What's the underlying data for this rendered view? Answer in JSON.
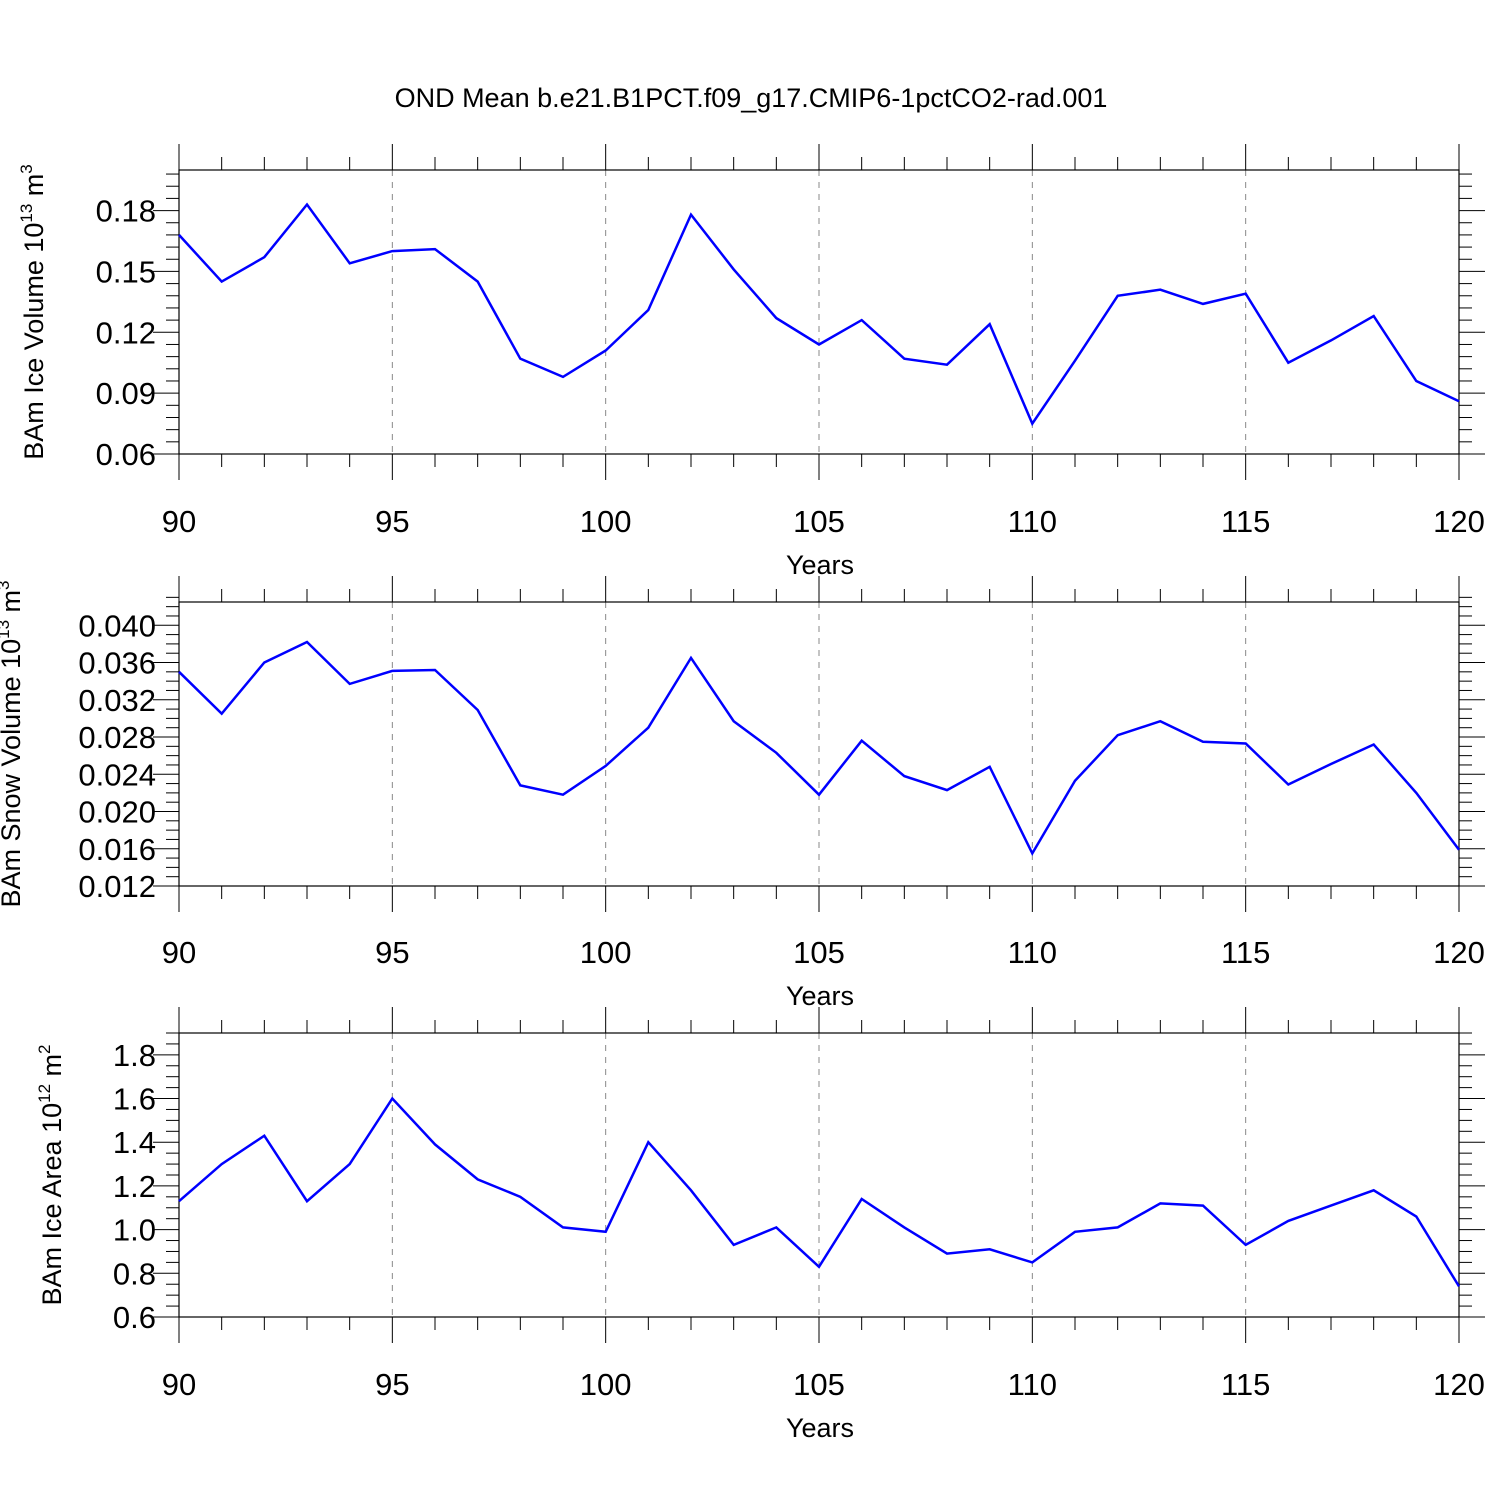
{
  "title": "OND Mean b.e21.B1PCT.f09_g17.CMIP6-1pctCO2-rad.001",
  "line_color": "#0000ff",
  "grid_color": "#888888",
  "chart_data": [
    {
      "type": "line",
      "xlabel": "Years",
      "ylabel": {
        "text": "BAm Ice Volume 10",
        "exp": "13",
        "unit": " m",
        "unit_exp": "3"
      },
      "xlim": [
        90,
        120
      ],
      "ylim": [
        0.06,
        0.2
      ],
      "xticks": [
        90,
        95,
        100,
        105,
        110,
        115,
        120
      ],
      "xtick_labels": [
        "90",
        "95",
        "100",
        "105",
        "110",
        "115",
        "120"
      ],
      "yticks": [
        0.06,
        0.09,
        0.12,
        0.15,
        0.18
      ],
      "ytick_labels": [
        "0.06",
        "0.09",
        "0.12",
        "0.15",
        "0.18"
      ],
      "y_minor_step": 0.006,
      "grid": "dashed vertical at major x ticks",
      "x": [
        90,
        91,
        92,
        93,
        94,
        95,
        96,
        97,
        98,
        99,
        100,
        101,
        102,
        103,
        104,
        105,
        106,
        107,
        108,
        109,
        110,
        111,
        112,
        113,
        114,
        115,
        116,
        117,
        118,
        119,
        120
      ],
      "values": [
        0.168,
        0.145,
        0.157,
        0.183,
        0.154,
        0.16,
        0.161,
        0.145,
        0.107,
        0.098,
        0.111,
        0.131,
        0.178,
        0.151,
        0.127,
        0.114,
        0.126,
        0.107,
        0.104,
        0.124,
        0.075,
        0.106,
        0.138,
        0.141,
        0.134,
        0.139,
        0.105,
        0.116,
        0.128,
        0.096,
        0.086
      ]
    },
    {
      "type": "line",
      "xlabel": "Years",
      "ylabel": {
        "text": "BAm Snow Volume 10",
        "exp": "13",
        "unit": " m",
        "unit_exp": "3"
      },
      "xlim": [
        90,
        120
      ],
      "ylim": [
        0.012,
        0.0425
      ],
      "xticks": [
        90,
        95,
        100,
        105,
        110,
        115,
        120
      ],
      "xtick_labels": [
        "90",
        "95",
        "100",
        "105",
        "110",
        "115",
        "120"
      ],
      "yticks": [
        0.012,
        0.016,
        0.02,
        0.024,
        0.028,
        0.032,
        0.036,
        0.04
      ],
      "ytick_labels": [
        "0.012",
        "0.016",
        "0.020",
        "0.024",
        "0.028",
        "0.032",
        "0.036",
        "0.040"
      ],
      "y_minor_step": 0.001,
      "grid": "dashed vertical at major x ticks",
      "x": [
        90,
        91,
        92,
        93,
        94,
        95,
        96,
        97,
        98,
        99,
        100,
        101,
        102,
        103,
        104,
        105,
        106,
        107,
        108,
        109,
        110,
        111,
        112,
        113,
        114,
        115,
        116,
        117,
        118,
        119,
        120
      ],
      "values": [
        0.035,
        0.0305,
        0.036,
        0.0382,
        0.0337,
        0.0351,
        0.0352,
        0.0309,
        0.0228,
        0.0218,
        0.0249,
        0.029,
        0.0365,
        0.0297,
        0.0263,
        0.0218,
        0.0276,
        0.0238,
        0.0223,
        0.0248,
        0.0155,
        0.0233,
        0.0282,
        0.0297,
        0.0275,
        0.0273,
        0.0229,
        0.0251,
        0.0272,
        0.022,
        0.0159
      ]
    },
    {
      "type": "line",
      "xlabel": "Years",
      "ylabel": {
        "text": "BAm Ice Area 10",
        "exp": "12",
        "unit": " m",
        "unit_exp": "2"
      },
      "xlim": [
        90,
        120
      ],
      "ylim": [
        0.6,
        1.9
      ],
      "xticks": [
        90,
        95,
        100,
        105,
        110,
        115,
        120
      ],
      "xtick_labels": [
        "90",
        "95",
        "100",
        "105",
        "110",
        "115",
        "120"
      ],
      "yticks": [
        0.6,
        0.8,
        1.0,
        1.2,
        1.4,
        1.6,
        1.8
      ],
      "ytick_labels": [
        "0.6",
        "0.8",
        "1.0",
        "1.2",
        "1.4",
        "1.6",
        "1.8"
      ],
      "y_minor_step": 0.05,
      "grid": "dashed vertical at major x ticks",
      "x": [
        90,
        91,
        92,
        93,
        94,
        95,
        96,
        97,
        98,
        99,
        100,
        101,
        102,
        103,
        104,
        105,
        106,
        107,
        108,
        109,
        110,
        111,
        112,
        113,
        114,
        115,
        116,
        117,
        118,
        119,
        120
      ],
      "values": [
        1.13,
        1.3,
        1.43,
        1.13,
        1.3,
        1.6,
        1.39,
        1.23,
        1.15,
        1.01,
        0.99,
        1.4,
        1.18,
        0.93,
        1.01,
        0.83,
        1.14,
        1.01,
        0.89,
        0.91,
        0.85,
        0.99,
        1.01,
        1.12,
        1.11,
        0.93,
        1.04,
        1.11,
        1.18,
        1.06,
        0.74
      ]
    }
  ]
}
